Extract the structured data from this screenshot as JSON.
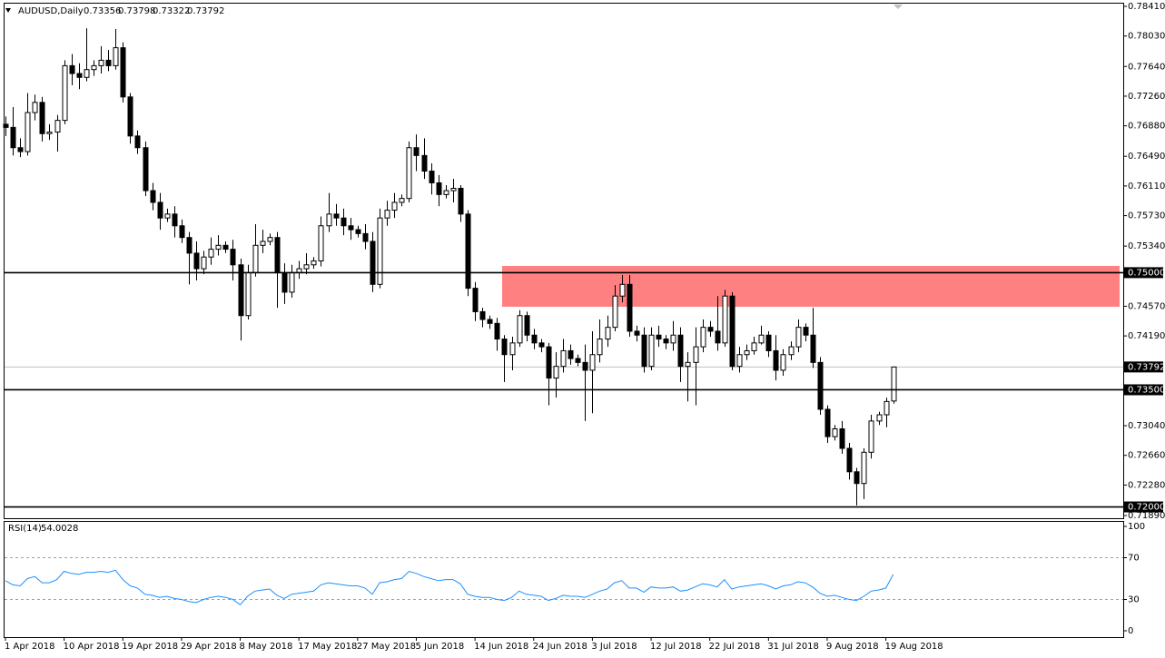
{
  "chart_data": [
    {
      "type": "candlestick",
      "symbol": "AUDUSD,Daily",
      "categories": [
        "1 Apr 2018",
        null,
        null,
        null,
        null,
        null,
        null,
        null,
        "10 Apr 2018",
        null,
        null,
        null,
        null,
        null,
        null,
        null,
        "19 Apr 2018",
        null,
        null,
        null,
        null,
        null,
        null,
        null,
        "29 Apr 2018",
        null,
        null,
        null,
        null,
        null,
        null,
        null,
        "8 May 2018",
        null,
        null,
        null,
        null,
        null,
        null,
        null,
        "17 May 2018",
        null,
        null,
        null,
        null,
        null,
        null,
        null,
        "27 May 2018",
        null,
        null,
        null,
        null,
        null,
        null,
        null,
        "5 Jun 2018",
        null,
        null,
        null,
        null,
        null,
        null,
        null,
        "14 Jun 2018",
        null,
        null,
        null,
        null,
        null,
        null,
        null,
        "24 Jun 2018",
        null,
        null,
        null,
        null,
        null,
        null,
        null,
        "3 Jul 2018",
        null,
        null,
        null,
        null,
        null,
        null,
        null,
        "12 Jul 2018",
        null,
        null,
        null,
        null,
        null,
        null,
        null,
        "22 Jul 2018",
        null,
        null,
        null,
        null,
        null,
        null,
        null,
        "31 Jul 2018",
        null,
        null,
        null,
        null,
        null,
        null,
        null,
        "9 Aug 2018",
        null,
        null,
        null,
        null,
        null,
        null,
        null,
        "19 Aug 2018",
        null
      ],
      "ohlc": [
        [
          0.769,
          0.77,
          0.7675,
          0.7686
        ],
        [
          0.7686,
          0.7712,
          0.765,
          0.766
        ],
        [
          0.766,
          0.7672,
          0.7648,
          0.7655
        ],
        [
          0.7655,
          0.773,
          0.765,
          0.7705
        ],
        [
          0.7705,
          0.7728,
          0.7695,
          0.7718
        ],
        [
          0.7718,
          0.7725,
          0.7668,
          0.7678
        ],
        [
          0.7678,
          0.769,
          0.767,
          0.768
        ],
        [
          0.768,
          0.7702,
          0.7655,
          0.7695
        ],
        [
          0.7695,
          0.7772,
          0.769,
          0.7765
        ],
        [
          0.7765,
          0.778,
          0.774,
          0.7755
        ],
        [
          0.7755,
          0.7768,
          0.7735,
          0.775
        ],
        [
          0.775,
          0.7813,
          0.7745,
          0.776
        ],
        [
          0.776,
          0.7772,
          0.7752,
          0.7765
        ],
        [
          0.7765,
          0.779,
          0.7755,
          0.7772
        ],
        [
          0.7772,
          0.7785,
          0.7758,
          0.7765
        ],
        [
          0.7765,
          0.7812,
          0.776,
          0.7788
        ],
        [
          0.7788,
          0.7795,
          0.7718,
          0.7725
        ],
        [
          0.7725,
          0.773,
          0.7665,
          0.7675
        ],
        [
          0.7675,
          0.7682,
          0.7652,
          0.766
        ],
        [
          0.766,
          0.7668,
          0.7598,
          0.7605
        ],
        [
          0.7605,
          0.7615,
          0.758,
          0.759
        ],
        [
          0.759,
          0.7602,
          0.7555,
          0.757
        ],
        [
          0.757,
          0.7582,
          0.7565,
          0.7575
        ],
        [
          0.7575,
          0.7585,
          0.7545,
          0.756
        ],
        [
          0.756,
          0.7568,
          0.7538,
          0.7545
        ],
        [
          0.7545,
          0.7552,
          0.7485,
          0.7525
        ],
        [
          0.7525,
          0.754,
          0.749,
          0.7505
        ],
        [
          0.7505,
          0.7528,
          0.7498,
          0.752
        ],
        [
          0.752,
          0.7545,
          0.751,
          0.753
        ],
        [
          0.753,
          0.7548,
          0.7522,
          0.7535
        ],
        [
          0.7535,
          0.754,
          0.7525,
          0.753
        ],
        [
          0.753,
          0.7542,
          0.749,
          0.751
        ],
        [
          0.751,
          0.7518,
          0.7413,
          0.7445
        ],
        [
          0.7445,
          0.751,
          0.744,
          0.75
        ],
        [
          0.75,
          0.7562,
          0.7495,
          0.7535
        ],
        [
          0.7535,
          0.7555,
          0.7525,
          0.754
        ],
        [
          0.754,
          0.755,
          0.7535,
          0.7545
        ],
        [
          0.7545,
          0.7552,
          0.7455,
          0.75
        ],
        [
          0.75,
          0.7512,
          0.746,
          0.7475
        ],
        [
          0.7475,
          0.751,
          0.7468,
          0.75
        ],
        [
          0.75,
          0.7515,
          0.7492,
          0.7505
        ],
        [
          0.7505,
          0.7525,
          0.7498,
          0.751
        ],
        [
          0.751,
          0.752,
          0.7505,
          0.7515
        ],
        [
          0.7515,
          0.7572,
          0.7508,
          0.756
        ],
        [
          0.756,
          0.7602,
          0.7552,
          0.7575
        ],
        [
          0.7575,
          0.7588,
          0.756,
          0.757
        ],
        [
          0.757,
          0.7582,
          0.7548,
          0.756
        ],
        [
          0.756,
          0.757,
          0.7542,
          0.7555
        ],
        [
          0.7555,
          0.756,
          0.7545,
          0.755
        ],
        [
          0.755,
          0.7562,
          0.753,
          0.754
        ],
        [
          0.754,
          0.7552,
          0.7475,
          0.7485
        ],
        [
          0.7485,
          0.7582,
          0.748,
          0.757
        ],
        [
          0.757,
          0.7592,
          0.756,
          0.758
        ],
        [
          0.758,
          0.7602,
          0.757,
          0.759
        ],
        [
          0.759,
          0.76,
          0.7585,
          0.7595
        ],
        [
          0.7595,
          0.7668,
          0.759,
          0.766
        ],
        [
          0.766,
          0.7677,
          0.763,
          0.765
        ],
        [
          0.765,
          0.7672,
          0.762,
          0.763
        ],
        [
          0.763,
          0.764,
          0.76,
          0.7615
        ],
        [
          0.7615,
          0.7625,
          0.7585,
          0.76
        ],
        [
          0.76,
          0.7612,
          0.7595,
          0.7605
        ],
        [
          0.7605,
          0.762,
          0.759,
          0.7608
        ],
        [
          0.7608,
          0.7612,
          0.7565,
          0.7575
        ],
        [
          0.7575,
          0.758,
          0.747,
          0.748
        ],
        [
          0.748,
          0.7488,
          0.7438,
          0.745
        ],
        [
          0.745,
          0.7455,
          0.743,
          0.744
        ],
        [
          0.744,
          0.7445,
          0.7428,
          0.7435
        ],
        [
          0.7435,
          0.7442,
          0.74,
          0.7415
        ],
        [
          0.7415,
          0.742,
          0.736,
          0.7395
        ],
        [
          0.7395,
          0.7418,
          0.7375,
          0.741
        ],
        [
          0.741,
          0.7452,
          0.7405,
          0.7445
        ],
        [
          0.7445,
          0.745,
          0.7412,
          0.742
        ],
        [
          0.742,
          0.7428,
          0.7402,
          0.741
        ],
        [
          0.741,
          0.7415,
          0.7398,
          0.7405
        ],
        [
          0.7405,
          0.741,
          0.733,
          0.7365
        ],
        [
          0.7365,
          0.7398,
          0.734,
          0.738
        ],
        [
          0.738,
          0.7415,
          0.7372,
          0.74
        ],
        [
          0.74,
          0.7408,
          0.7382,
          0.739
        ],
        [
          0.739,
          0.7395,
          0.738,
          0.7385
        ],
        [
          0.7385,
          0.7408,
          0.731,
          0.7375
        ],
        [
          0.7375,
          0.7425,
          0.732,
          0.7395
        ],
        [
          0.7395,
          0.744,
          0.7385,
          0.7415
        ],
        [
          0.7415,
          0.7445,
          0.7405,
          0.743
        ],
        [
          0.743,
          0.7484,
          0.7425,
          0.747
        ],
        [
          0.747,
          0.7497,
          0.7462,
          0.7485
        ],
        [
          0.7485,
          0.7497,
          0.7418,
          0.7425
        ],
        [
          0.7425,
          0.7432,
          0.7412,
          0.742
        ],
        [
          0.742,
          0.743,
          0.7372,
          0.738
        ],
        [
          0.738,
          0.743,
          0.7375,
          0.742
        ],
        [
          0.742,
          0.7432,
          0.7405,
          0.7415
        ],
        [
          0.7415,
          0.742,
          0.7402,
          0.741
        ],
        [
          0.741,
          0.7438,
          0.74,
          0.742
        ],
        [
          0.742,
          0.743,
          0.736,
          0.738
        ],
        [
          0.738,
          0.7398,
          0.7335,
          0.7385
        ],
        [
          0.7385,
          0.743,
          0.733,
          0.7405
        ],
        [
          0.7405,
          0.744,
          0.7398,
          0.743
        ],
        [
          0.743,
          0.7438,
          0.7418,
          0.7425
        ],
        [
          0.7425,
          0.747,
          0.74,
          0.741
        ],
        [
          0.741,
          0.7478,
          0.7405,
          0.747
        ],
        [
          0.747,
          0.7475,
          0.7375,
          0.738
        ],
        [
          0.738,
          0.7405,
          0.7372,
          0.7395
        ],
        [
          0.7395,
          0.7408,
          0.7388,
          0.74
        ],
        [
          0.74,
          0.7418,
          0.7395,
          0.741
        ],
        [
          0.741,
          0.7432,
          0.7408,
          0.742
        ],
        [
          0.742,
          0.7425,
          0.7392,
          0.74
        ],
        [
          0.74,
          0.742,
          0.7362,
          0.7375
        ],
        [
          0.7375,
          0.7402,
          0.7368,
          0.7395
        ],
        [
          0.7395,
          0.7412,
          0.7388,
          0.7405
        ],
        [
          0.7405,
          0.744,
          0.7398,
          0.743
        ],
        [
          0.743,
          0.7435,
          0.7412,
          0.742
        ],
        [
          0.742,
          0.7455,
          0.7378,
          0.7385
        ],
        [
          0.7385,
          0.7392,
          0.7318,
          0.7325
        ],
        [
          0.7325,
          0.733,
          0.7282,
          0.729
        ],
        [
          0.729,
          0.7305,
          0.7285,
          0.73
        ],
        [
          0.73,
          0.731,
          0.7268,
          0.7275
        ],
        [
          0.7275,
          0.7282,
          0.7235,
          0.7245
        ],
        [
          0.7245,
          0.725,
          0.7202,
          0.723
        ],
        [
          0.723,
          0.7275,
          0.721,
          0.727
        ],
        [
          0.727,
          0.7318,
          0.7262,
          0.731
        ],
        [
          0.731,
          0.7322,
          0.7305,
          0.7318
        ],
        [
          0.7318,
          0.734,
          0.7302,
          0.7335
        ],
        [
          0.73356,
          0.73798,
          0.73322,
          0.73792
        ]
      ],
      "ylim": [
        0.7189,
        0.7841
      ],
      "yticks": [
        {
          "value": 0.7841,
          "label": "0.78410"
        },
        {
          "value": 0.7803,
          "label": "0.78030"
        },
        {
          "value": 0.7764,
          "label": "0.77640"
        },
        {
          "value": 0.7726,
          "label": "0.77260"
        },
        {
          "value": 0.7688,
          "label": "0.76880"
        },
        {
          "value": 0.7649,
          "label": "0.76490"
        },
        {
          "value": 0.7611,
          "label": "0.76110"
        },
        {
          "value": 0.7573,
          "label": "0.75730"
        },
        {
          "value": 0.7534,
          "label": "0.75340"
        },
        {
          "value": 0.7457,
          "label": "0.74570"
        },
        {
          "value": 0.7419,
          "label": "0.74190"
        },
        {
          "value": 0.7304,
          "label": "0.73040"
        },
        {
          "value": 0.7266,
          "label": "0.72660"
        },
        {
          "value": 0.7228,
          "label": "0.72280"
        },
        {
          "value": 0.7189,
          "label": "0.71890"
        }
      ],
      "levels": [
        {
          "value": 0.75,
          "label": "0.75000"
        },
        {
          "value": 0.735,
          "label": "0.73500"
        },
        {
          "value": 0.72,
          "label": "0.72000"
        }
      ],
      "up_color": "#ffffff",
      "down_color": "#000000",
      "level_color": "#000000"
    },
    {
      "type": "line",
      "name": "RSI(14)",
      "color": "#1e90ff",
      "values": [
        48,
        44,
        43,
        50,
        52,
        46,
        46,
        49,
        57,
        55,
        54,
        56,
        56,
        57,
        56,
        58,
        49,
        43,
        41,
        35,
        34,
        32,
        33,
        31,
        30,
        28,
        27,
        30,
        32,
        33,
        32,
        30,
        25,
        33,
        38,
        39,
        40,
        34,
        31,
        35,
        36,
        37,
        38,
        44,
        46,
        45,
        44,
        43,
        43,
        41,
        35,
        46,
        47,
        49,
        50,
        57,
        55,
        52,
        50,
        48,
        49,
        49,
        45,
        35,
        33,
        32,
        32,
        30,
        29,
        32,
        38,
        35,
        34,
        33,
        29,
        31,
        34,
        33,
        33,
        32,
        35,
        38,
        40,
        46,
        48,
        41,
        41,
        37,
        42,
        41,
        41,
        42,
        38,
        39,
        42,
        45,
        44,
        42,
        49,
        40,
        42,
        43,
        44,
        45,
        43,
        40,
        43,
        44,
        47,
        46,
        42,
        36,
        33,
        34,
        32,
        30,
        29,
        33,
        38,
        39,
        41,
        54.0028
      ],
      "ylim": [
        0,
        100
      ],
      "yticks": [
        100,
        70,
        30,
        0
      ],
      "dashed": [
        70,
        30
      ]
    }
  ]
}
